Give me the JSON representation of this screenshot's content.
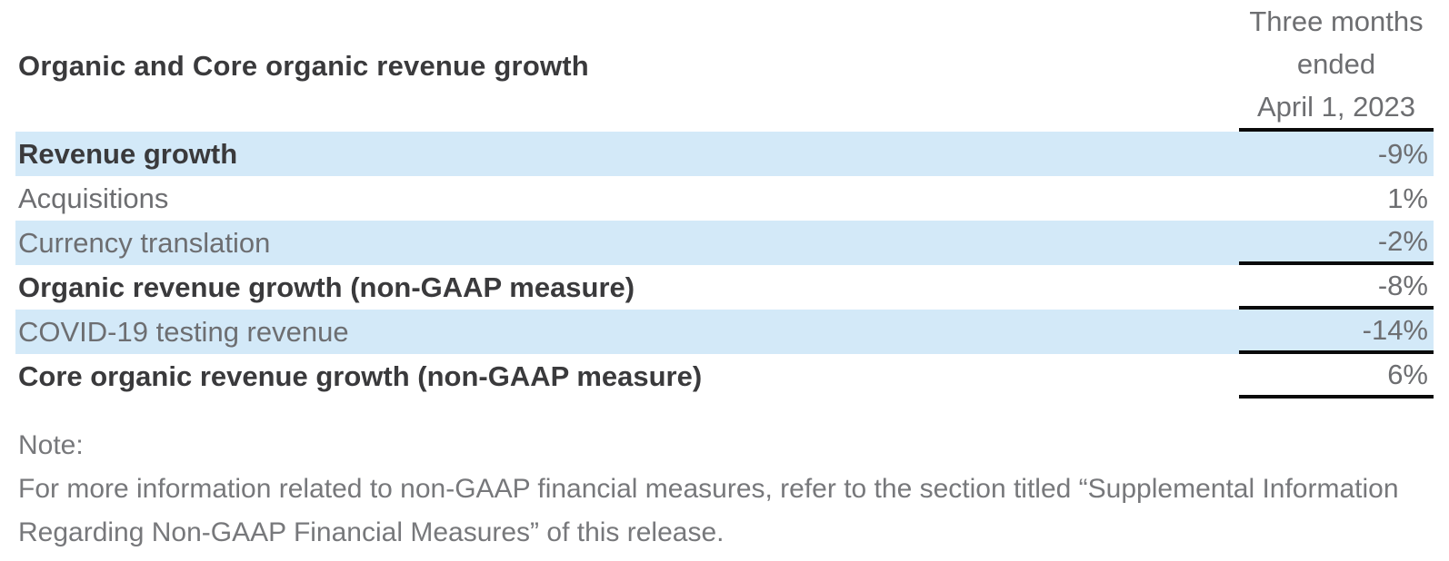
{
  "table": {
    "title": "Organic and Core organic revenue growth",
    "period_header": [
      "Three months",
      "ended",
      "April 1, 2023"
    ],
    "rows": [
      {
        "label": "Revenue growth",
        "value": "-9%"
      },
      {
        "label": "Acquisitions",
        "value": "1%"
      },
      {
        "label": "Currency translation",
        "value": "-2%"
      },
      {
        "label": "Organic revenue growth (non-GAAP measure)",
        "value": "-8%"
      },
      {
        "label": "COVID-19 testing revenue",
        "value": "-14%"
      },
      {
        "label": "Core organic revenue growth (non-GAAP measure)",
        "value": "6%"
      }
    ]
  },
  "note": {
    "label": "Note:",
    "text": "For more information related to non-GAAP financial measures, refer to the section titled “Supplemental Information Regarding Non-GAAP Financial Measures” of this release."
  },
  "colors": {
    "highlight": "#d3e9f8",
    "text_dark": "#3a3a3c",
    "text_light": "#6d6e71",
    "note_text": "#77787b",
    "rule": "#0a0a0a"
  }
}
